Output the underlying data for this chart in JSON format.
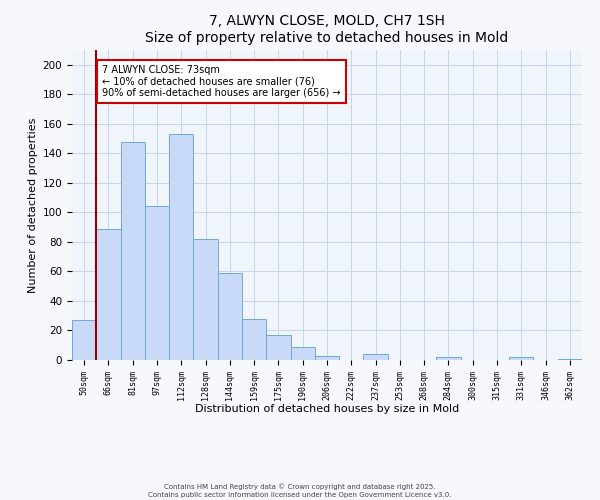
{
  "title1": "7, ALWYN CLOSE, MOLD, CH7 1SH",
  "title2": "Size of property relative to detached houses in Mold",
  "xlabel": "Distribution of detached houses by size in Mold",
  "ylabel": "Number of detached properties",
  "bar_labels": [
    "50sqm",
    "66sqm",
    "81sqm",
    "97sqm",
    "112sqm",
    "128sqm",
    "144sqm",
    "159sqm",
    "175sqm",
    "190sqm",
    "206sqm",
    "222sqm",
    "237sqm",
    "253sqm",
    "268sqm",
    "284sqm",
    "300sqm",
    "315sqm",
    "331sqm",
    "346sqm",
    "362sqm"
  ],
  "bar_values": [
    27,
    89,
    148,
    104,
    153,
    82,
    59,
    28,
    17,
    9,
    3,
    0,
    4,
    0,
    0,
    2,
    0,
    0,
    2,
    0,
    1
  ],
  "bar_color": "#c9daf8",
  "bar_edge_color": "#6fa8dc",
  "property_line_label": "7 ALWYN CLOSE: 73sqm",
  "annotation_line1": "← 10% of detached houses are smaller (76)",
  "annotation_line2": "90% of semi-detached houses are larger (656) →",
  "annotation_box_color": "#ffffff",
  "annotation_box_edge": "#cc0000",
  "property_line_color": "#990000",
  "ylim": [
    0,
    210
  ],
  "yticks": [
    0,
    20,
    40,
    60,
    80,
    100,
    120,
    140,
    160,
    180,
    200
  ],
  "footnote1": "Contains HM Land Registry data © Crown copyright and database right 2025.",
  "footnote2": "Contains public sector information licensed under the Open Government Licence v3.0.",
  "bg_color": "#f7f8fc",
  "plot_bg_color": "#f0f4fb",
  "grid_color": "#c8d4e8"
}
